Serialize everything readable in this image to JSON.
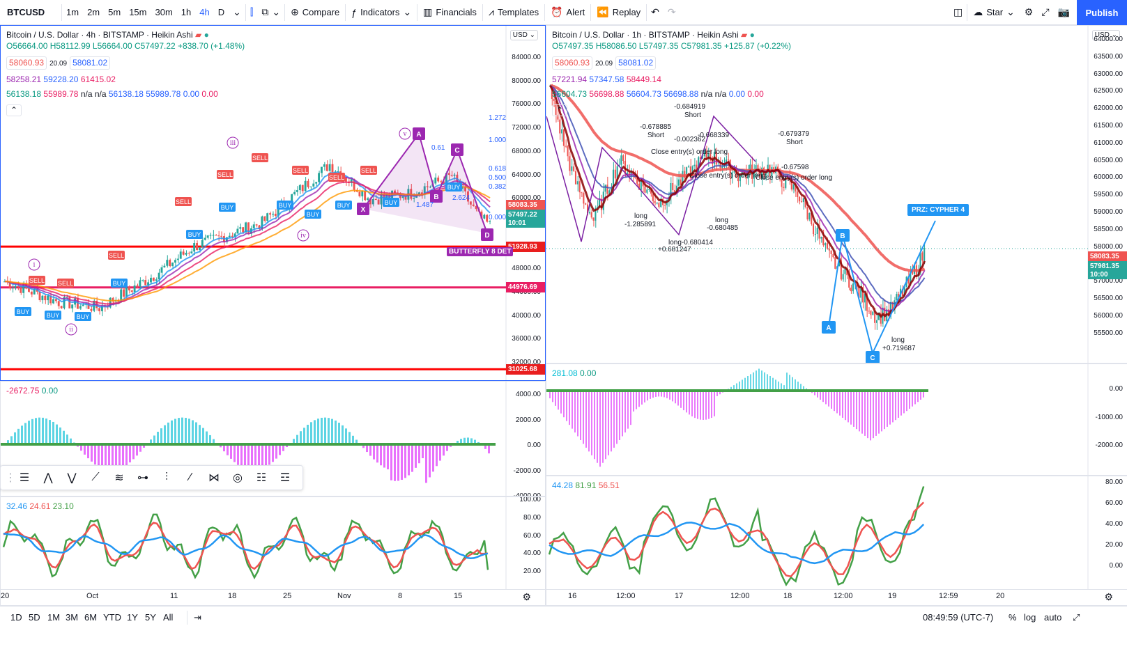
{
  "toolbar": {
    "symbol": "BTCUSD",
    "timeframes": [
      "1m",
      "2m",
      "5m",
      "15m",
      "30m",
      "1h",
      "4h",
      "D"
    ],
    "active_timeframe": "4h",
    "compare": "Compare",
    "indicators": "Indicators",
    "financials": "Financials",
    "templates": "Templates",
    "alert": "Alert",
    "replay": "Replay",
    "star": "Star",
    "publish": "Publish"
  },
  "left_chart": {
    "title": "Bitcoin / U.S. Dollar · 4h · BITSTAMP · Heikin Ashi",
    "ohlc": {
      "o": "O56664.00",
      "h": "H58112.99",
      "l": "L56664.00",
      "c": "C57497.22",
      "chg": "+838.70 (+1.48%)"
    },
    "bid": "58060.93",
    "spread": "20.09",
    "ask": "58081.02",
    "ind1": [
      "58258.21",
      "59228.20",
      "61415.02"
    ],
    "ind2": [
      "56138.18",
      "55989.78",
      "n/a",
      "n/a",
      "56138.18",
      "55989.78",
      "0.00",
      "0.00"
    ],
    "price_ticks": [
      "84000.00",
      "80000.00",
      "76000.00",
      "72000.00",
      "68000.00",
      "64000.00",
      "60000.00",
      "56000.00",
      "52000.00",
      "48000.00",
      "44000.00",
      "40000.00",
      "36000.00",
      "32000.00"
    ],
    "price_labels": {
      "current": "58083.35",
      "last": "57497.22",
      "countdown": "10:01",
      "line1": "51928.93",
      "line2": "44976.69",
      "line3": "31025.68"
    },
    "pattern_label": "BUTTERFLY 8 DET",
    "macd_legend": [
      "-2672.75",
      "0.00"
    ],
    "macd_ticks": [
      "4000.00",
      "2000.00",
      "0.00",
      "-2000.00",
      "-4000.00"
    ],
    "rsi_legend": [
      "32.46",
      "24.61",
      "23.10"
    ],
    "rsi_ticks": [
      "100.00",
      "80.00",
      "60.00",
      "40.00",
      "20.00"
    ],
    "time_ticks": [
      "20",
      "Oct",
      "11",
      "18",
      "25",
      "Nov",
      "8",
      "15"
    ],
    "fib_labels": [
      "1.272",
      "1.000",
      "0.618",
      "0.500",
      "0.382",
      "0.61",
      "1.487",
      "2.624",
      "0.000"
    ],
    "wave_labels": [
      "i",
      "ii",
      "iii",
      "iv",
      "v"
    ],
    "xabcd": [
      "X",
      "A",
      "B",
      "C",
      "D"
    ]
  },
  "right_chart": {
    "title": "Bitcoin / U.S. Dollar · 1h · BITSTAMP · Heikin Ashi",
    "ohlc": {
      "o": "O57497.35",
      "h": "H58086.50",
      "l": "L57497.35",
      "c": "C57981.35",
      "chg": "+125.87 (+0.22%)"
    },
    "bid": "58060.93",
    "spread": "20.09",
    "ask": "58081.02",
    "ind1": [
      "57221.94",
      "57347.58",
      "58449.14"
    ],
    "ind2": [
      "56604.73",
      "56698.88",
      "56604.73",
      "56698.88",
      "n/a",
      "n/a",
      "0.00",
      "0.00"
    ],
    "price_ticks": [
      "64000.00",
      "63500.00",
      "63000.00",
      "62500.00",
      "62000.00",
      "61500.00",
      "61000.00",
      "60500.00",
      "60000.00",
      "59500.00",
      "59000.00",
      "58500.00",
      "58000.00",
      "57500.00",
      "57000.00",
      "56500.00",
      "56000.00",
      "55500.00"
    ],
    "price_labels": {
      "current": "58083.35",
      "last": "57981.35",
      "countdown": "10:00"
    },
    "prz": "PRZ: CYPHER 4",
    "macd_legend": [
      "281.08",
      "0.00"
    ],
    "macd_ticks": [
      "0.00",
      "-1000.00",
      "-2000.00"
    ],
    "rsi_legend": [
      "44.28",
      "81.91",
      "56.51"
    ],
    "rsi_ticks": [
      "80.00",
      "60.00",
      "40.00",
      "20.00",
      "0.00"
    ],
    "time_ticks": [
      "16",
      "12:00",
      "17",
      "12:00",
      "18",
      "12:00",
      "19",
      "12:59",
      "20"
    ],
    "annotations": [
      "-0.684919",
      "Short",
      "-0.678885",
      "Short",
      "-0.002362",
      "Close entry(s) order long",
      "-0.668339",
      "Close entry(s) order long",
      "-0.679379",
      "Short",
      "-0.67598",
      "Close entry(s) order long",
      "long",
      "-1.285891",
      "long",
      "-0.680485",
      "long-0.680414",
      "+0.681247",
      "long",
      "+0.719687"
    ],
    "abc": [
      "A",
      "B",
      "C"
    ]
  },
  "bottom": {
    "ranges": [
      "1D",
      "5D",
      "1M",
      "3M",
      "6M",
      "YTD",
      "1Y",
      "5Y",
      "All"
    ],
    "clock": "08:49:59 (UTC-7)",
    "pct": "%",
    "log": "log",
    "auto": "auto"
  },
  "colors": {
    "accent": "#2962ff",
    "up": "#26a69a",
    "down": "#ef5350",
    "red_line": "#ff0000",
    "magenta_line": "#e91e63"
  }
}
